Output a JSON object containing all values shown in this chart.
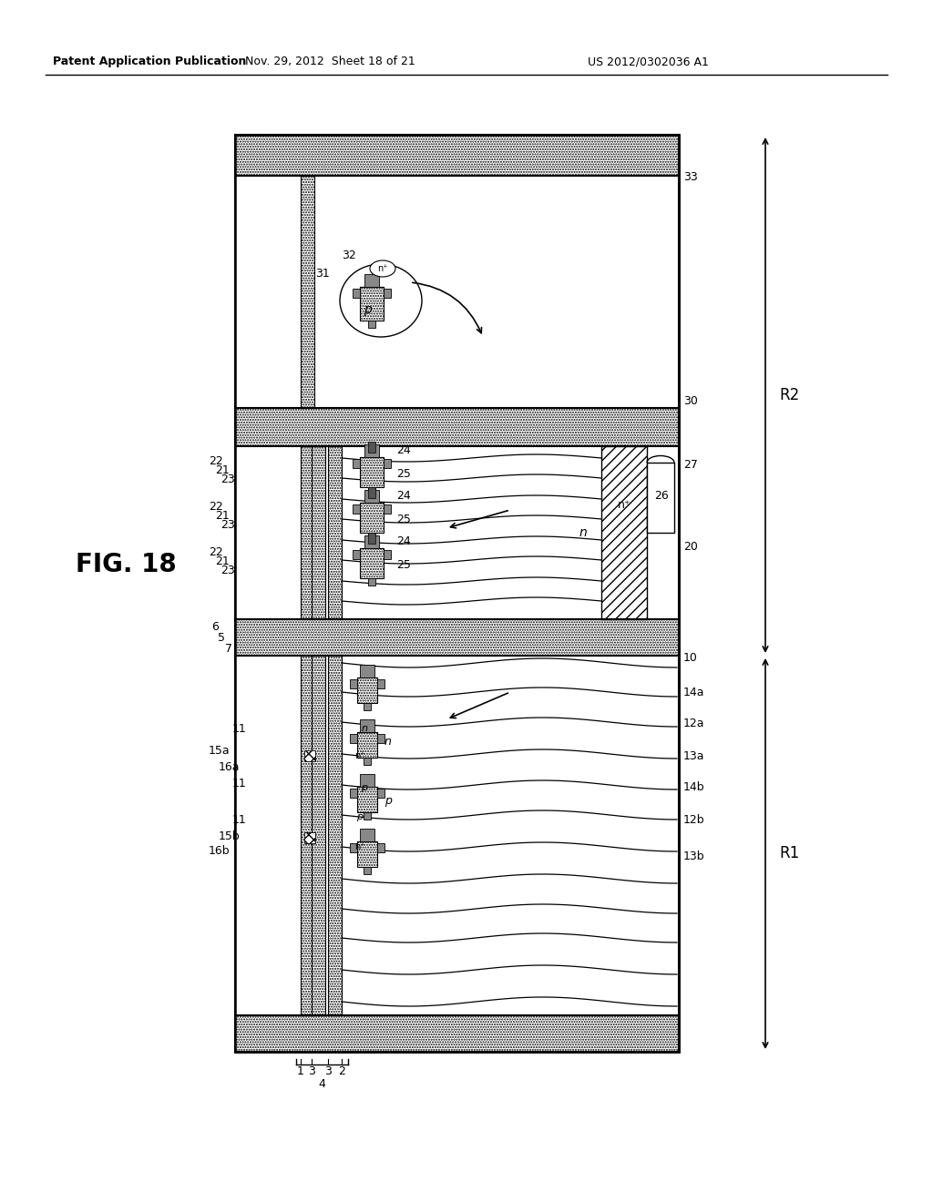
{
  "title_left": "Patent Application Publication",
  "title_mid": "Nov. 29, 2012  Sheet 18 of 21",
  "title_right": "US 2012/0302036 A1",
  "fig_label": "FIG. 18",
  "bg_color": "#ffffff",
  "lc": "#000000",
  "dot_color": "#c8c8c8",
  "dot_color2": "#d8d8d8"
}
